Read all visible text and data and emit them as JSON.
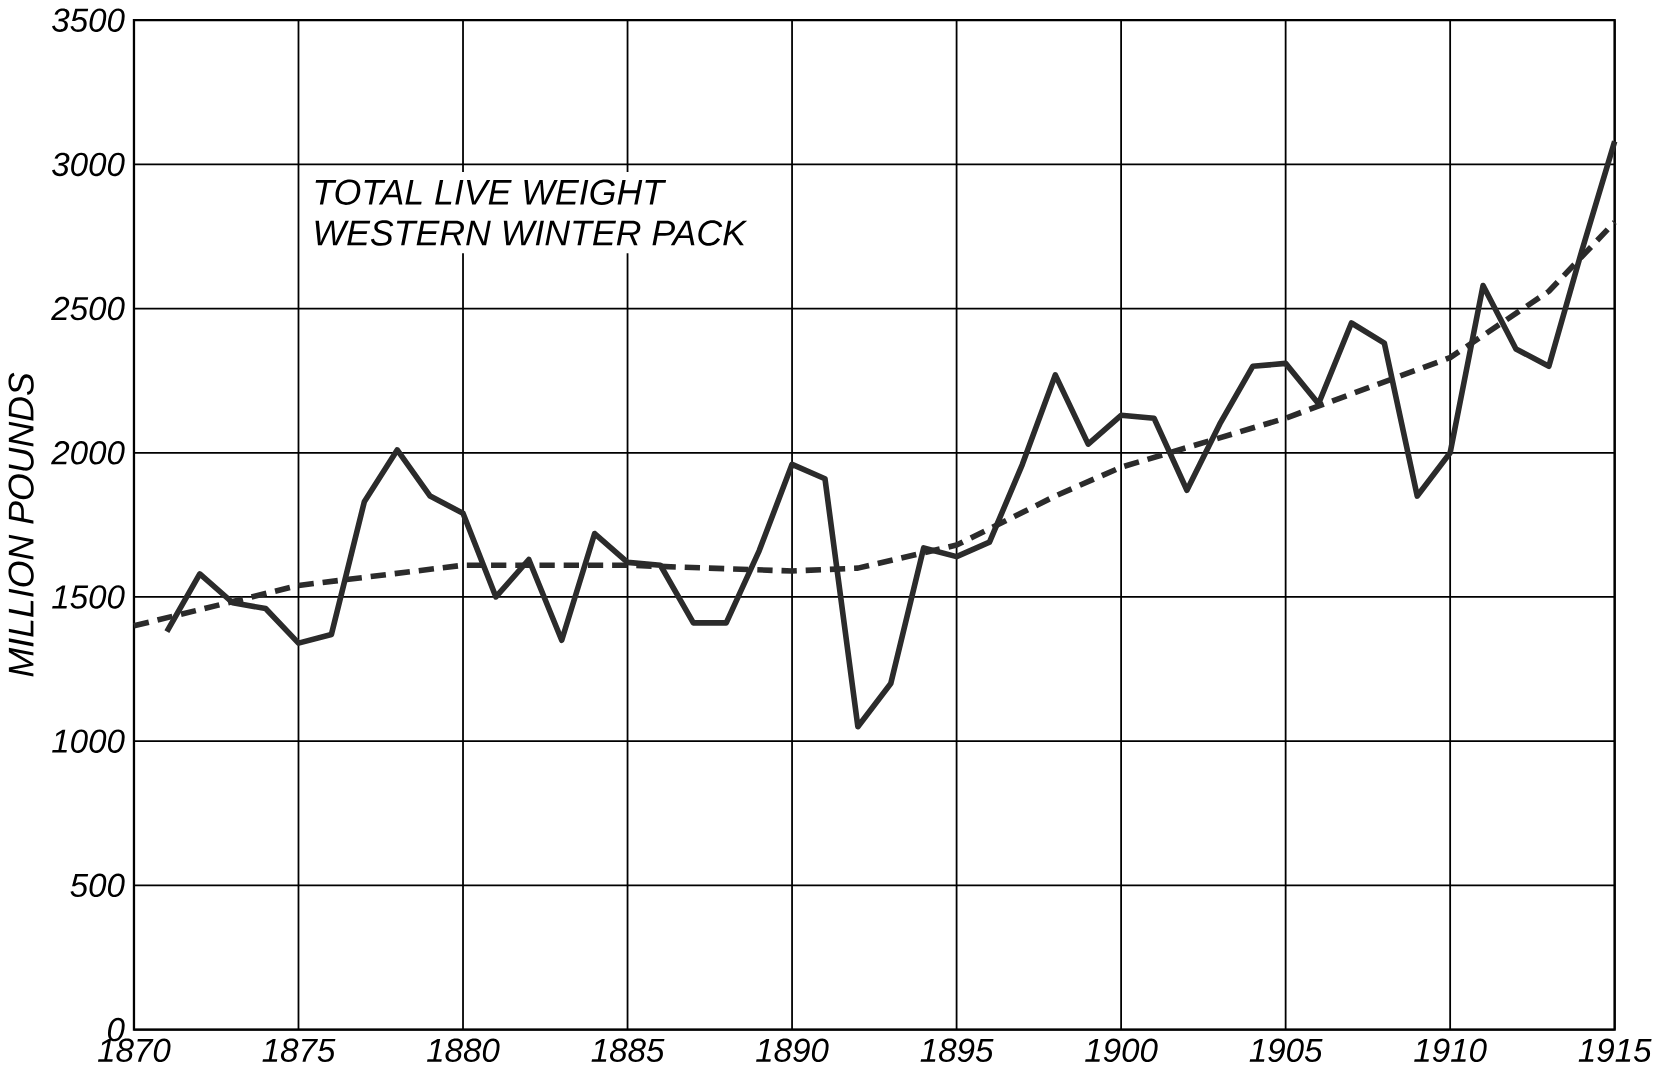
{
  "chart_data": {
    "type": "line",
    "title": "TOTAL LIVE WEIGHT\nWESTERN WINTER PACK",
    "ylabel": "MILLION    POUNDS",
    "xlim": [
      1870,
      1915
    ],
    "xticks": [
      1870,
      1875,
      1880,
      1885,
      1890,
      1895,
      1900,
      1905,
      1910,
      1915
    ],
    "ylim": [
      0,
      3500
    ],
    "yticks": [
      0,
      500,
      1000,
      1500,
      2000,
      2500,
      3000,
      3500
    ],
    "grid": true,
    "marker": "none",
    "series": [
      {
        "color": "#2b2b2b",
        "line_style": "solid",
        "x": [
          1871,
          1872,
          1873,
          1874,
          1875,
          1876,
          1877,
          1878,
          1879,
          1880,
          1881,
          1882,
          1883,
          1884,
          1885,
          1886,
          1887,
          1888,
          1889,
          1890,
          1891,
          1892,
          1893,
          1894,
          1895,
          1896,
          1897,
          1898,
          1899,
          1900,
          1901,
          1902,
          1903,
          1904,
          1905,
          1906,
          1907,
          1908,
          1909,
          1910,
          1911,
          1912,
          1913,
          1914,
          1915
        ],
        "values": [
          1380,
          1580,
          1480,
          1460,
          1340,
          1370,
          1830,
          2010,
          1850,
          1790,
          1500,
          1630,
          1350,
          1720,
          1620,
          1610,
          1410,
          1410,
          1660,
          1960,
          1910,
          1050,
          1200,
          1670,
          1640,
          1690,
          1960,
          2270,
          2030,
          2130,
          2120,
          1870,
          2100,
          2300,
          2310,
          2170,
          2450,
          2380,
          1850,
          2000,
          2580,
          2360,
          2300,
          2700,
          3080
        ]
      },
      {
        "color": "#2b2b2b",
        "line_style": "dashed",
        "x": [
          1870,
          1875,
          1880,
          1885,
          1890,
          1892,
          1895,
          1898,
          1900,
          1905,
          1910,
          1913,
          1915
        ],
        "values": [
          1400,
          1540,
          1610,
          1610,
          1590,
          1600,
          1680,
          1850,
          1950,
          2120,
          2330,
          2560,
          2800
        ]
      }
    ]
  }
}
